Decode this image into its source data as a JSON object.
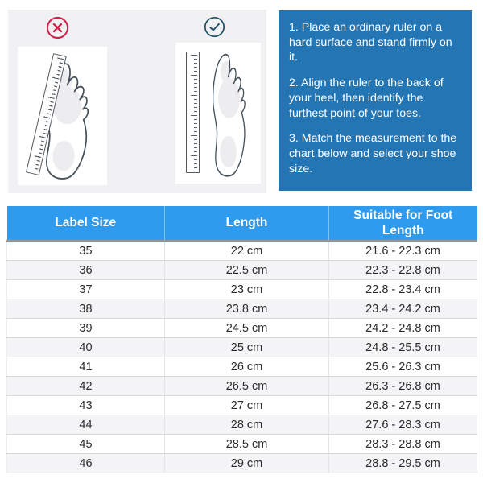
{
  "guide": {
    "wrong_icon": "x-circle",
    "correct_icon": "check-circle",
    "wrong_illustration": "foot-measured-with-tilted-ruler",
    "correct_illustration": "foot-measured-with-straight-ruler"
  },
  "instructions": {
    "steps": [
      "1. Place an ordinary ruler on a hard surface and stand firmly on it.",
      "2. Align the ruler to the back of your heel, then identify the furthest point of your toes.",
      "3. Match the measurement to the chart below and select your shoe size."
    ]
  },
  "chart_data": {
    "type": "table",
    "columns": [
      "Label Size",
      "Length",
      "Suitable for Foot Length"
    ],
    "rows": [
      [
        "35",
        "22 cm",
        "21.6 - 22.3 cm"
      ],
      [
        "36",
        "22.5 cm",
        "22.3 - 22.8 cm"
      ],
      [
        "37",
        "23 cm",
        "22.8 - 23.4 cm"
      ],
      [
        "38",
        "23.8 cm",
        "23.4 - 24.2 cm"
      ],
      [
        "39",
        "24.5 cm",
        "24.2 - 24.8 cm"
      ],
      [
        "40",
        "25 cm",
        "24.8 - 25.5 cm"
      ],
      [
        "41",
        "26 cm",
        "25.6 - 26.3 cm"
      ],
      [
        "42",
        "26.5 cm",
        "26.3 - 26.8 cm"
      ],
      [
        "43",
        "27 cm",
        "26.8 - 27.5 cm"
      ],
      [
        "44",
        "28 cm",
        "27.6 - 28.3 cm"
      ],
      [
        "45",
        "28.5 cm",
        "28.3 - 28.8 cm"
      ],
      [
        "46",
        "29 cm",
        "28.8 - 29.5 cm"
      ]
    ]
  },
  "colors": {
    "table_header_blue": "#2e9bee",
    "instruction_box_blue": "#2475b4",
    "wrong_mark_red": "#d4204a",
    "correct_mark_teal": "#1f4f63",
    "panel_gray": "#f1f1f3",
    "row_stripe_gray": "#f4f4f6"
  }
}
